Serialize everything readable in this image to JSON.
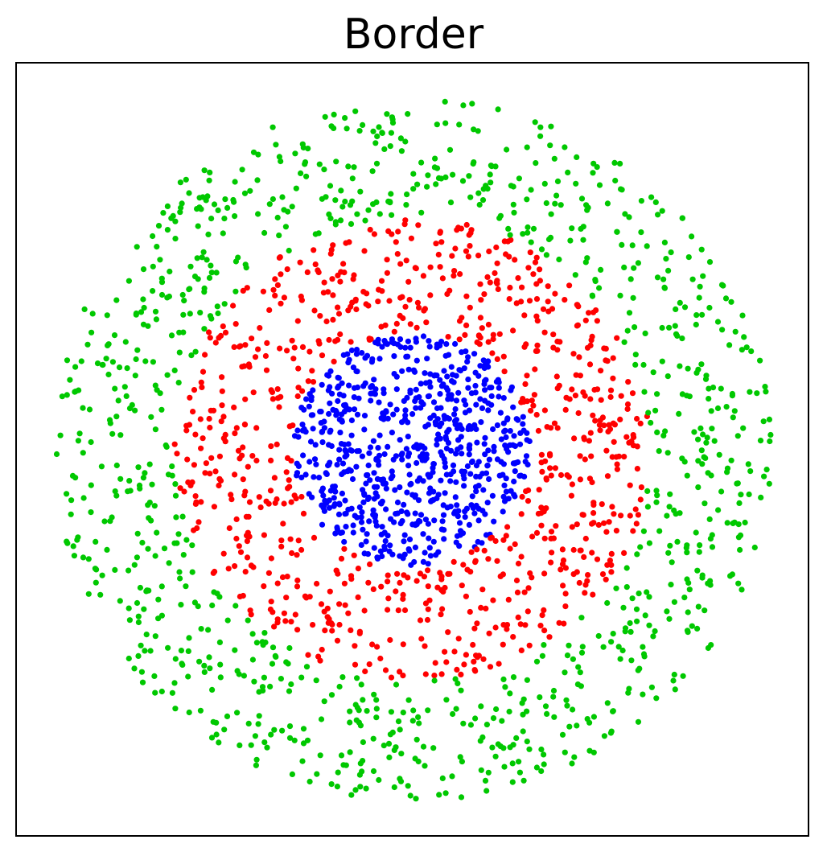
{
  "chart_data": {
    "type": "scatter",
    "title": "Border",
    "xlabel": "",
    "ylabel": "",
    "grid": false,
    "xlim": [
      -1.1,
      1.1
    ],
    "ylim": [
      -1.1,
      1.1
    ],
    "show_ticks": false,
    "series": [
      {
        "color": "#0000ff",
        "ring": {
          "r_min": 0.0,
          "r_max": 0.33
        },
        "count": 700,
        "seed": 11
      },
      {
        "color": "#ff0000",
        "ring": {
          "r_min": 0.33,
          "r_max": 0.66
        },
        "count": 800,
        "seed": 23
      },
      {
        "color": "#00c800",
        "ring": {
          "r_min": 0.66,
          "r_max": 1.0
        },
        "count": 1000,
        "seed": 37
      }
    ]
  }
}
